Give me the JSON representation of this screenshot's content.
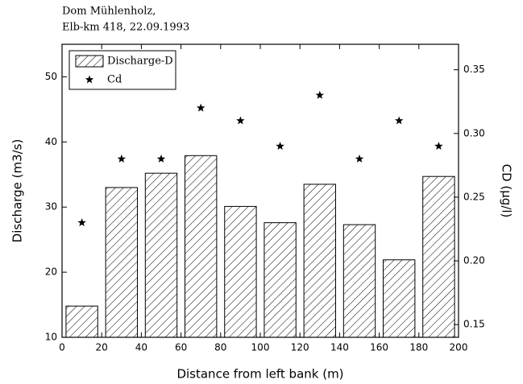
{
  "chart_data": {
    "type": "bar",
    "title": [
      "Dom Mühlenholz,",
      "Elb-km 418, 22.09.1993"
    ],
    "x_label": "Distance from left bank (m)",
    "y_label": "Discharge (m3/s)",
    "y2_label": "CD (µg/l)",
    "x": [
      10,
      30,
      50,
      70,
      90,
      110,
      130,
      150,
      170,
      190
    ],
    "series": [
      {
        "name": "Discharge-D",
        "type": "bar",
        "color": "#000000",
        "pattern": "hatch",
        "values": [
          14.8,
          33,
          35.2,
          37.9,
          30.1,
          27.6,
          33.5,
          27.3,
          21.9,
          34.7
        ]
      },
      {
        "name": "Cd",
        "type": "scatter",
        "marker": "star",
        "axis": "y2",
        "color": "#000000",
        "values": [
          0.23,
          0.28,
          0.28,
          0.32,
          0.31,
          0.29,
          0.33,
          0.28,
          0.31,
          0.29
        ]
      }
    ],
    "xlim": [
      0,
      200
    ],
    "xticks": [
      0,
      20,
      40,
      60,
      80,
      100,
      120,
      140,
      160,
      180,
      200
    ],
    "ylim": [
      10,
      55
    ],
    "yticks": [
      10,
      20,
      30,
      40,
      50
    ],
    "y2lim": [
      0.14,
      0.37
    ],
    "y2ticks": [
      0.15,
      {
        "value": 0.2,
        "label": "0.20"
      },
      0.25,
      {
        "value": 0.3,
        "label": "0.30"
      },
      0.35
    ],
    "legend": "top-left"
  }
}
